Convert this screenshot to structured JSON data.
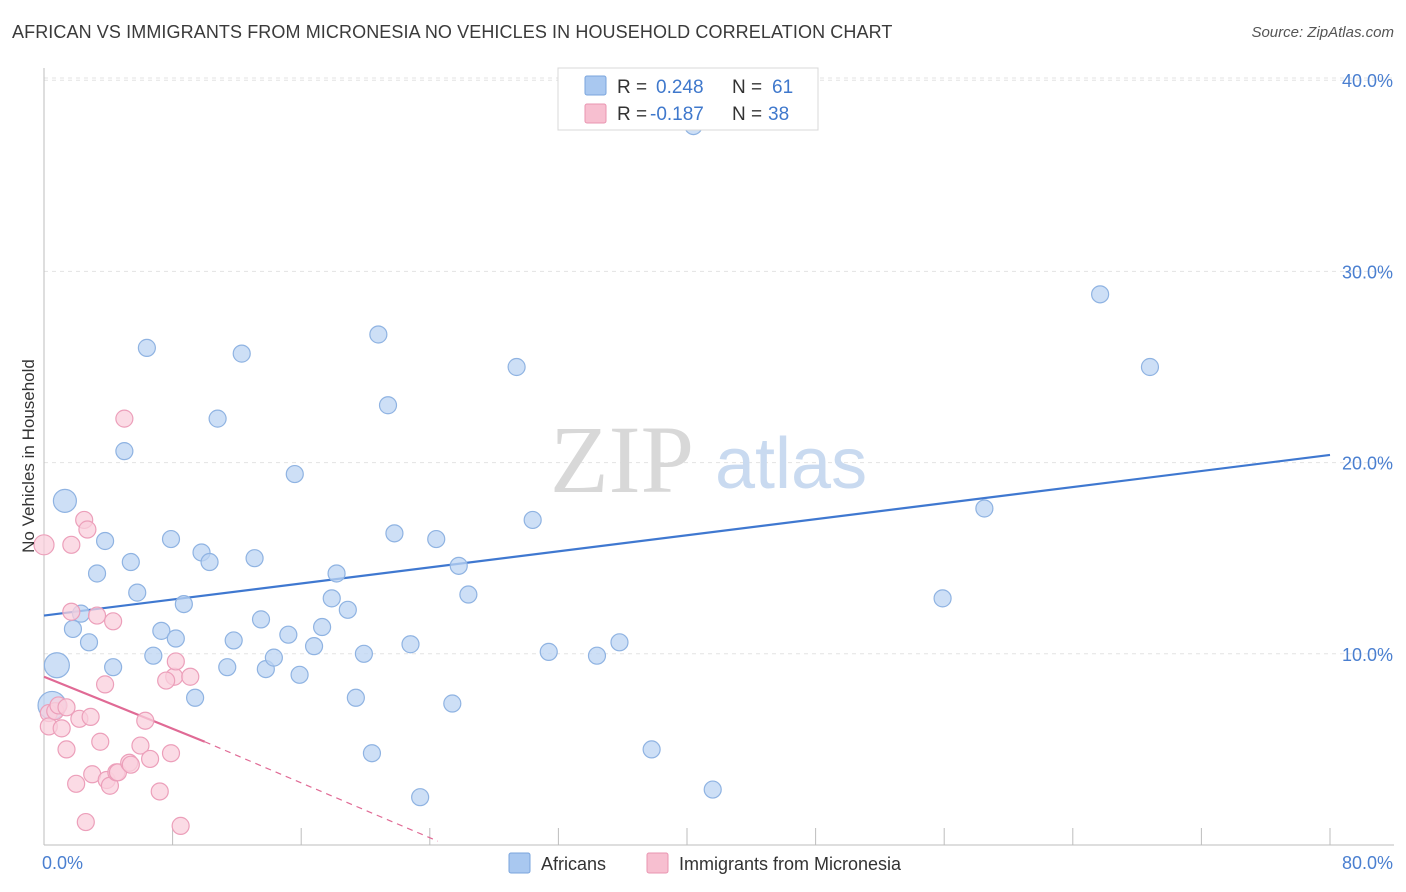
{
  "header": {
    "title": "AFRICAN VS IMMIGRANTS FROM MICRONESIA NO VEHICLES IN HOUSEHOLD CORRELATION CHART",
    "source": "Source: ZipAtlas.com"
  },
  "watermark": {
    "zip": "ZIP",
    "atlas": "atlas"
  },
  "legend_top": {
    "rows": [
      {
        "r_label": "R =",
        "r_value": "0.248",
        "n_label": "N =",
        "n_value": "61",
        "color": "#a9c8f0",
        "stroke": "#7aa5dd"
      },
      {
        "r_label": "R =",
        "r_value": "-0.187",
        "n_label": "N =",
        "n_value": "38",
        "color": "#f7bfd0",
        "stroke": "#e995b1"
      }
    ]
  },
  "legend_bottom": {
    "items": [
      {
        "label": "Africans",
        "color": "#a9c8f0",
        "stroke": "#7aa5dd"
      },
      {
        "label": "Immigrants from Micronesia",
        "color": "#f7bfd0",
        "stroke": "#e995b1"
      }
    ]
  },
  "colors": {
    "blue_fill": "#bcd4f3",
    "blue_stroke": "#8fb3e2",
    "blue_line": "#3f78d0",
    "pink_fill": "#f9cfdc",
    "pink_stroke": "#ec9fba",
    "pink_line": "#e06a95",
    "grid": "#e3e3e3",
    "axis": "#bdbdbd"
  },
  "chart_data": {
    "type": "scatter",
    "title": "AFRICAN VS IMMIGRANTS FROM MICRONESIA NO VEHICLES IN HOUSEHOLD CORRELATION CHART",
    "xlabel": "",
    "ylabel": "No Vehicles in Household",
    "xlim": [
      0,
      80
    ],
    "ylim": [
      0,
      40
    ],
    "x_tick_labels": [
      "0.0%",
      "80.0%"
    ],
    "y_ticks": [
      10,
      20,
      30,
      40
    ],
    "y_tick_labels": [
      "10.0%",
      "20.0%",
      "30.0%",
      "40.0%"
    ],
    "grid": true,
    "legend_position": "top-center",
    "series": [
      {
        "name": "Africans",
        "color": "#a9c8f0",
        "trend": {
          "x": [
            0,
            80
          ],
          "y": [
            12.0,
            20.4
          ]
        },
        "points": [
          {
            "x": 1.3,
            "y": 18.0
          },
          {
            "x": 0.8,
            "y": 9.4
          },
          {
            "x": 0.5,
            "y": 7.3
          },
          {
            "x": 2.3,
            "y": 12.1
          },
          {
            "x": 1.8,
            "y": 11.3
          },
          {
            "x": 2.8,
            "y": 10.6
          },
          {
            "x": 3.3,
            "y": 14.2
          },
          {
            "x": 3.8,
            "y": 15.9
          },
          {
            "x": 4.3,
            "y": 9.3
          },
          {
            "x": 5.0,
            "y": 20.6
          },
          {
            "x": 5.4,
            "y": 14.8
          },
          {
            "x": 5.8,
            "y": 13.2
          },
          {
            "x": 6.4,
            "y": 26.0
          },
          {
            "x": 6.8,
            "y": 9.9
          },
          {
            "x": 7.3,
            "y": 11.2
          },
          {
            "x": 7.9,
            "y": 16.0
          },
          {
            "x": 8.2,
            "y": 10.8
          },
          {
            "x": 8.7,
            "y": 12.6
          },
          {
            "x": 9.4,
            "y": 7.7
          },
          {
            "x": 9.8,
            "y": 15.3
          },
          {
            "x": 10.3,
            "y": 14.8
          },
          {
            "x": 10.8,
            "y": 22.3
          },
          {
            "x": 11.4,
            "y": 9.3
          },
          {
            "x": 11.8,
            "y": 10.7
          },
          {
            "x": 12.3,
            "y": 25.7
          },
          {
            "x": 13.1,
            "y": 15.0
          },
          {
            "x": 13.5,
            "y": 11.8
          },
          {
            "x": 13.8,
            "y": 9.2
          },
          {
            "x": 14.3,
            "y": 9.8
          },
          {
            "x": 15.2,
            "y": 11.0
          },
          {
            "x": 15.6,
            "y": 19.4
          },
          {
            "x": 15.9,
            "y": 8.9
          },
          {
            "x": 16.8,
            "y": 10.4
          },
          {
            "x": 17.3,
            "y": 11.4
          },
          {
            "x": 17.9,
            "y": 12.9
          },
          {
            "x": 18.2,
            "y": 14.2
          },
          {
            "x": 18.9,
            "y": 12.3
          },
          {
            "x": 19.4,
            "y": 7.7
          },
          {
            "x": 19.9,
            "y": 10.0
          },
          {
            "x": 20.4,
            "y": 4.8
          },
          {
            "x": 20.8,
            "y": 26.7
          },
          {
            "x": 21.4,
            "y": 23.0
          },
          {
            "x": 21.8,
            "y": 16.3
          },
          {
            "x": 22.8,
            "y": 10.5
          },
          {
            "x": 23.4,
            "y": 2.5
          },
          {
            "x": 24.4,
            "y": 16.0
          },
          {
            "x": 25.4,
            "y": 7.4
          },
          {
            "x": 25.8,
            "y": 14.6
          },
          {
            "x": 26.4,
            "y": 13.1
          },
          {
            "x": 29.4,
            "y": 25.0
          },
          {
            "x": 30.4,
            "y": 17.0
          },
          {
            "x": 31.4,
            "y": 10.1
          },
          {
            "x": 34.4,
            "y": 9.9
          },
          {
            "x": 35.8,
            "y": 10.6
          },
          {
            "x": 37.8,
            "y": 5.0
          },
          {
            "x": 40.4,
            "y": 37.6
          },
          {
            "x": 41.6,
            "y": 2.9
          },
          {
            "x": 55.9,
            "y": 12.9
          },
          {
            "x": 58.5,
            "y": 17.6
          },
          {
            "x": 65.7,
            "y": 28.8
          },
          {
            "x": 68.8,
            "y": 25.0
          }
        ]
      },
      {
        "name": "Immigrants from Micronesia",
        "color": "#f7bfd0",
        "trend": {
          "x": [
            0,
            10
          ],
          "y": [
            8.8,
            5.4
          ],
          "dashed_to": {
            "x": 24.5,
            "y": 0.2
          }
        },
        "points": [
          {
            "x": 0.0,
            "y": 15.7
          },
          {
            "x": 0.3,
            "y": 6.9
          },
          {
            "x": 0.3,
            "y": 6.2
          },
          {
            "x": 0.7,
            "y": 7.0
          },
          {
            "x": 0.9,
            "y": 7.3
          },
          {
            "x": 1.1,
            "y": 6.1
          },
          {
            "x": 1.4,
            "y": 7.2
          },
          {
            "x": 1.4,
            "y": 5.0
          },
          {
            "x": 1.7,
            "y": 15.7
          },
          {
            "x": 1.7,
            "y": 12.2
          },
          {
            "x": 2.0,
            "y": 3.2
          },
          {
            "x": 2.2,
            "y": 6.6
          },
          {
            "x": 2.5,
            "y": 17.0
          },
          {
            "x": 2.6,
            "y": 1.2
          },
          {
            "x": 2.7,
            "y": 16.5
          },
          {
            "x": 2.9,
            "y": 6.7
          },
          {
            "x": 3.0,
            "y": 3.7
          },
          {
            "x": 3.3,
            "y": 12.0
          },
          {
            "x": 3.5,
            "y": 5.4
          },
          {
            "x": 3.8,
            "y": 8.4
          },
          {
            "x": 3.9,
            "y": 3.4
          },
          {
            "x": 4.1,
            "y": 3.1
          },
          {
            "x": 4.3,
            "y": 11.7
          },
          {
            "x": 4.5,
            "y": 3.8
          },
          {
            "x": 4.6,
            "y": 3.8
          },
          {
            "x": 5.0,
            "y": 22.3
          },
          {
            "x": 5.3,
            "y": 4.3
          },
          {
            "x": 5.4,
            "y": 4.2
          },
          {
            "x": 6.0,
            "y": 5.2
          },
          {
            "x": 6.3,
            "y": 6.5
          },
          {
            "x": 6.6,
            "y": 4.5
          },
          {
            "x": 7.2,
            "y": 2.8
          },
          {
            "x": 7.9,
            "y": 4.8
          },
          {
            "x": 8.1,
            "y": 8.8
          },
          {
            "x": 8.2,
            "y": 9.6
          },
          {
            "x": 8.5,
            "y": 1.0
          },
          {
            "x": 9.1,
            "y": 8.8
          },
          {
            "x": 7.6,
            "y": 8.6
          }
        ]
      }
    ]
  },
  "axis": {
    "y_title": "No Vehicles in Household"
  }
}
